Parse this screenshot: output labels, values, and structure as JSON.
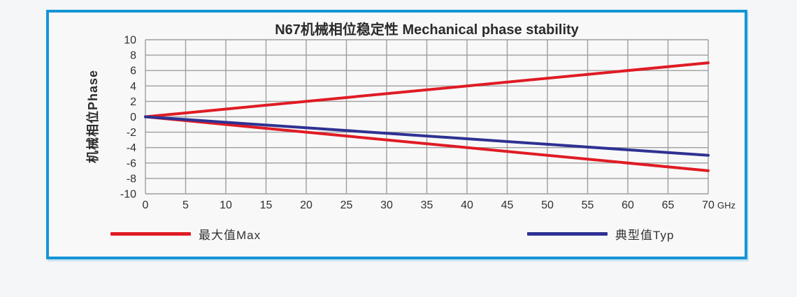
{
  "page": {
    "background": "#f5f6f7"
  },
  "panel": {
    "border_color": "#1595d6",
    "background": "#f8f8f8"
  },
  "chart_data": {
    "type": "line",
    "title": "N67机械相位稳定性 Mechanical phase stability",
    "ylabel": "机械相位Phase",
    "xlabel": "",
    "x_unit": "GHz",
    "xlim": [
      0,
      70
    ],
    "ylim": [
      -10,
      10
    ],
    "x_ticks": [
      0,
      5,
      10,
      15,
      20,
      25,
      30,
      35,
      40,
      45,
      50,
      55,
      60,
      65,
      70
    ],
    "y_ticks": [
      -10,
      -8,
      -6,
      -4,
      -2,
      0,
      2,
      4,
      6,
      8,
      10
    ],
    "grid": true,
    "grid_color": "#9e9e9e",
    "tick_color": "#2f2f2f",
    "series": [
      {
        "name": "max-upper",
        "legend": "最大值Max",
        "color": "#e01b24",
        "points": [
          [
            0,
            0
          ],
          [
            70,
            7
          ]
        ]
      },
      {
        "name": "max-lower",
        "legend": "最大值Max",
        "color": "#e01b24",
        "points": [
          [
            0,
            0
          ],
          [
            70,
            -7
          ]
        ]
      },
      {
        "name": "typ",
        "legend": "典型值Typ",
        "color": "#2e3192",
        "points": [
          [
            0,
            0
          ],
          [
            70,
            -5
          ]
        ]
      }
    ],
    "legend": [
      {
        "label": "最大值Max",
        "color": "#e01b24"
      },
      {
        "label": "典型值Typ",
        "color": "#2e3192"
      }
    ],
    "legend_position": "bottom"
  }
}
